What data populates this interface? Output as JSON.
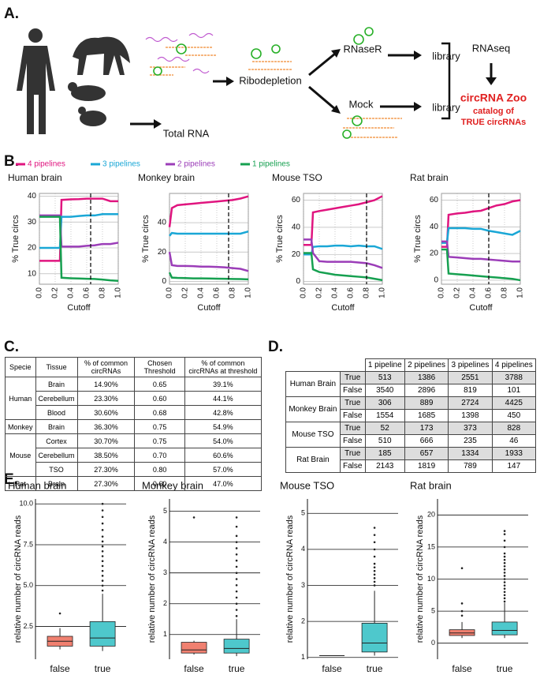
{
  "panel_labels": [
    "A.",
    "B.",
    "C.",
    "D.",
    "E."
  ],
  "panel_a": {
    "total_rna": "Total RNA",
    "ribodepletion": "Ribodepletion",
    "rnaser": "RNaseR",
    "mock": "Mock",
    "library_1": "library",
    "library_2": "library",
    "rnaseq": "RNAseq",
    "zoo_title": "circRNA Zoo",
    "zoo_sub_1": "catalog of",
    "zoo_sub_2": "TRUE circRNAs"
  },
  "chart_data": [
    {
      "type": "line",
      "title": "Human brain",
      "x_label": "Cutoff",
      "y_label": "% True circs",
      "x": [
        0,
        0.1,
        0.2,
        0.26,
        0.28,
        0.4,
        0.5,
        0.6,
        0.7,
        0.8,
        0.9,
        1.0
      ],
      "xlim": [
        0,
        1
      ],
      "xticks": [
        {
          "value": 0,
          "label": "0.0"
        },
        0.2,
        0.4,
        0.6,
        0.8,
        {
          "value": 1,
          "label": "1.0"
        }
      ],
      "ylim": [
        6,
        41
      ],
      "yticks": [
        10,
        20,
        30,
        40
      ],
      "threshold": 0.65,
      "grid": true,
      "series": [
        {
          "name": "4 pipelines",
          "color": "#e0157f",
          "values": [
            15,
            15,
            15,
            15,
            38.5,
            38.7,
            38.8,
            39,
            39,
            39,
            38,
            38
          ]
        },
        {
          "name": "3 pipelines",
          "color": "#1aa7d6",
          "values": [
            20,
            20,
            20,
            20,
            32,
            32,
            32.3,
            32.5,
            32.5,
            33,
            33,
            33
          ]
        },
        {
          "name": "2 pipelines",
          "color": "#9b3db8",
          "values": [
            32.5,
            32.5,
            32.5,
            32.5,
            20.5,
            20.5,
            20.5,
            20.8,
            21,
            21.5,
            21.5,
            22
          ]
        },
        {
          "name": "1 pipelines",
          "color": "#16a050",
          "values": [
            32,
            32,
            32,
            32,
            8.5,
            8.3,
            8.2,
            8.1,
            8,
            7.8,
            7.5,
            7.3
          ]
        }
      ]
    },
    {
      "type": "line",
      "title": "Monkey brain",
      "x_label": "Cutoff",
      "y_label": "% True circs",
      "x": [
        0,
        0.03,
        0.1,
        0.2,
        0.3,
        0.4,
        0.5,
        0.6,
        0.7,
        0.8,
        0.9,
        1.0
      ],
      "xlim": [
        0,
        1
      ],
      "xticks": [
        {
          "value": 0,
          "label": "0.0"
        },
        0.2,
        0.4,
        0.6,
        0.8,
        {
          "value": 1,
          "label": "1.0"
        }
      ],
      "ylim": [
        -2,
        60
      ],
      "yticks": [
        0,
        20,
        40
      ],
      "threshold": 0.75,
      "grid": true,
      "series": [
        {
          "color": "#e0157f",
          "values": [
            37,
            50,
            52,
            52.5,
            53,
            53.5,
            54,
            54.5,
            55,
            55.5,
            56.5,
            58
          ]
        },
        {
          "color": "#1aa7d6",
          "values": [
            31,
            33,
            32.5,
            32.5,
            32.5,
            32.5,
            32.5,
            32.5,
            32.5,
            32.5,
            32.5,
            34
          ]
        },
        {
          "color": "#9b3db8",
          "values": [
            20,
            11,
            10.5,
            10.5,
            10.3,
            10,
            10,
            9.8,
            9.5,
            9,
            8.5,
            7
          ]
        },
        {
          "color": "#16a050",
          "values": [
            6,
            2.5,
            2.3,
            2.2,
            2,
            2,
            1.9,
            1.8,
            1.7,
            1.6,
            1.5,
            1.3
          ]
        }
      ]
    },
    {
      "type": "line",
      "title": "Mouse TSO",
      "x_label": "Cutoff",
      "y_label": "% True circs",
      "x": [
        0,
        0.1,
        0.12,
        0.2,
        0.3,
        0.4,
        0.5,
        0.6,
        0.7,
        0.8,
        0.9,
        1.0
      ],
      "xlim": [
        0,
        1
      ],
      "xticks": [
        {
          "value": 0,
          "label": "0.0"
        },
        0.2,
        0.4,
        0.6,
        0.8,
        {
          "value": 1,
          "label": "1.0"
        }
      ],
      "ylim": [
        -2,
        65
      ],
      "yticks": [
        0,
        20,
        40,
        60
      ],
      "threshold": 0.8,
      "grid": true,
      "series": [
        {
          "color": "#e0157f",
          "values": [
            27,
            27,
            51,
            52,
            53,
            54,
            55,
            56,
            57,
            58.5,
            60,
            63
          ]
        },
        {
          "color": "#1aa7d6",
          "values": [
            20,
            20,
            25.5,
            26,
            26,
            26.5,
            26.5,
            26,
            26.5,
            26,
            26,
            24
          ]
        },
        {
          "color": "#9b3db8",
          "values": [
            31,
            31,
            21,
            15,
            14.5,
            14.5,
            14.5,
            14.5,
            14,
            13.5,
            12,
            10
          ]
        },
        {
          "color": "#16a050",
          "values": [
            21,
            21,
            9,
            7,
            6,
            5,
            4.5,
            4,
            3.5,
            3,
            2,
            1
          ]
        }
      ]
    },
    {
      "type": "line",
      "title": "Rat brain",
      "x_label": "Cutoff",
      "y_label": "% True circs",
      "x": [
        0,
        0.07,
        0.09,
        0.2,
        0.3,
        0.4,
        0.5,
        0.6,
        0.7,
        0.8,
        0.9,
        1.0
      ],
      "xlim": [
        0,
        1
      ],
      "xticks": [
        {
          "value": 0,
          "label": "0.0"
        },
        0.2,
        0.4,
        0.6,
        0.8,
        {
          "value": 1,
          "label": "1.0"
        }
      ],
      "ylim": [
        -3,
        65
      ],
      "yticks": [
        0,
        20,
        40,
        60
      ],
      "threshold": 0.6,
      "grid": true,
      "series": [
        {
          "color": "#e0157f",
          "values": [
            25,
            25,
            49,
            50,
            50.5,
            51.5,
            52,
            54,
            56,
            57,
            59,
            60
          ]
        },
        {
          "color": "#1aa7d6",
          "values": [
            28,
            28,
            39,
            39,
            39,
            38.5,
            38.5,
            37,
            36,
            35,
            34,
            37
          ]
        },
        {
          "color": "#9b3db8",
          "values": [
            29,
            29,
            17.5,
            17,
            16.5,
            16,
            16,
            15.5,
            15,
            14.5,
            14,
            14
          ]
        },
        {
          "color": "#16a050",
          "values": [
            23,
            23,
            5,
            4.5,
            4,
            3.5,
            3,
            2.5,
            2,
            1.5,
            1,
            0
          ]
        }
      ]
    },
    {
      "type": "box",
      "title": "Human brain",
      "y_label": "relative number of circRNA reads",
      "categories": [
        "false",
        "true"
      ],
      "colors": [
        "#f08070",
        "#4ec8cc"
      ],
      "ylim": [
        0.5,
        10.3
      ],
      "yticks": [
        2.5,
        {
          "value": 5,
          "label": "5.0"
        },
        7.5,
        {
          "value": 10,
          "label": "10.0"
        }
      ],
      "boxes": [
        {
          "whislo": 1.1,
          "q1": 1.3,
          "med": 1.6,
          "q3": 1.9,
          "whishi": 2.4,
          "outliers": [
            3.3
          ]
        },
        {
          "whislo": 1.0,
          "q1": 1.3,
          "med": 1.8,
          "q3": 2.8,
          "whishi": 4.5,
          "outliers": [
            4.7,
            5.0,
            5.3,
            5.6,
            5.9,
            6.2,
            6.5,
            6.8,
            7.1,
            7.4,
            7.7,
            8.0,
            8.4,
            8.8,
            9.2,
            9.6,
            10.0
          ]
        }
      ]
    },
    {
      "type": "box",
      "title": "Monkey brain",
      "y_label": "relative number of circRNA reads",
      "categories": [
        "false",
        "true"
      ],
      "colors": [
        "#f08070",
        "#4ec8cc"
      ],
      "ylim": [
        0.2,
        5.4
      ],
      "yticks": [
        1,
        2,
        3,
        4,
        5
      ],
      "boxes": [
        {
          "whislo": 0.35,
          "q1": 0.4,
          "med": 0.5,
          "q3": 0.75,
          "whishi": 0.8,
          "outliers": [
            4.8
          ]
        },
        {
          "whislo": 0.3,
          "q1": 0.4,
          "med": 0.55,
          "q3": 0.85,
          "whishi": 1.5,
          "outliers": [
            1.6,
            1.8,
            2.0,
            2.2,
            2.4,
            2.6,
            2.8,
            3.0,
            3.2,
            3.4,
            3.6,
            3.8,
            4.0,
            4.2,
            4.5,
            4.8
          ]
        }
      ]
    },
    {
      "type": "box",
      "title": "Mouse TSO",
      "y_label": "relative number of circRNA reads",
      "categories": [
        "false",
        "true"
      ],
      "colors": [
        "#f08070",
        "#4ec8cc"
      ],
      "ylim": [
        0.95,
        5.4
      ],
      "yticks": [
        1,
        2,
        3,
        4,
        5
      ],
      "boxes": [
        {
          "whislo": 1.05,
          "q1": 1.05,
          "med": 1.05,
          "q3": 1.05,
          "whishi": 1.05,
          "outliers": []
        },
        {
          "whislo": 1.05,
          "q1": 1.15,
          "med": 1.4,
          "q3": 1.95,
          "whishi": 2.85,
          "outliers": [
            3.0,
            3.1,
            3.2,
            3.3,
            3.4,
            3.5,
            3.6,
            3.8,
            4.0,
            4.2,
            4.4,
            4.6
          ]
        }
      ]
    },
    {
      "type": "box",
      "title": "Rat brain",
      "y_label": "relative number of circRNA reads",
      "categories": [
        "false",
        "true"
      ],
      "colors": [
        "#f08070",
        "#4ec8cc"
      ],
      "ylim": [
        -2.5,
        22.5
      ],
      "yticks": [
        0,
        5,
        10,
        15,
        20
      ],
      "boxes": [
        {
          "whislo": 0.8,
          "q1": 1.2,
          "med": 1.6,
          "q3": 2.1,
          "whishi": 3.3,
          "outliers": [
            4.3,
            5.0,
            6.2,
            11.7
          ]
        },
        {
          "whislo": 0.8,
          "q1": 1.3,
          "med": 2.0,
          "q3": 3.3,
          "whishi": 6.3,
          "outliers": [
            6.5,
            7,
            7.5,
            8,
            8.5,
            9,
            9.5,
            10,
            10.5,
            11,
            11.5,
            12,
            12.5,
            13,
            13.5,
            14,
            15,
            16,
            17,
            17.5
          ]
        }
      ]
    }
  ],
  "table_c": {
    "headers": [
      "Specie",
      "Tissue",
      "% of common circRNAs",
      "Chosen Threshold",
      "% of common circRNAs at threshold"
    ],
    "groups": [
      {
        "specie": "Human",
        "rows": [
          [
            "Brain",
            "14.90%",
            "0.65",
            "39.1%"
          ],
          [
            "Cerebellum",
            "23.30%",
            "0.60",
            "44.1%"
          ],
          [
            "Blood",
            "30.60%",
            "0.68",
            "42.8%"
          ]
        ]
      },
      {
        "specie": "Monkey",
        "rows": [
          [
            "Brain",
            "36.30%",
            "0.75",
            "54.9%"
          ]
        ]
      },
      {
        "specie": "Mouse",
        "rows": [
          [
            "Cortex",
            "30.70%",
            "0.75",
            "54.0%"
          ],
          [
            "Cerebellum",
            "38.50%",
            "0.70",
            "60.6%"
          ],
          [
            "TSO",
            "27.30%",
            "0.80",
            "57.0%"
          ]
        ]
      },
      {
        "specie": "Rat",
        "rows": [
          [
            "Brain",
            "27.30%",
            "0.60",
            "47.0%"
          ]
        ]
      }
    ]
  },
  "table_d": {
    "headers": [
      "1 pipeline",
      "2 pipelines",
      "3 pipelines",
      "4 pipelines"
    ],
    "groups": [
      {
        "name": "Human Brain",
        "rows": [
          {
            "label": "True",
            "values": [
              513,
              1386,
              2551,
              3788
            ]
          },
          {
            "label": "False",
            "values": [
              3540,
              2896,
              819,
              101
            ]
          }
        ]
      },
      {
        "name": "Monkey Brain",
        "rows": [
          {
            "label": "True",
            "values": [
              306,
              889,
              2724,
              4425
            ]
          },
          {
            "label": "False",
            "values": [
              1554,
              1685,
              1398,
              450
            ]
          }
        ]
      },
      {
        "name": "Mouse TSO",
        "rows": [
          {
            "label": "True",
            "values": [
              52,
              173,
              373,
              828
            ]
          },
          {
            "label": "False",
            "values": [
              510,
              666,
              235,
              46
            ]
          }
        ]
      },
      {
        "name": "Rat Brain",
        "rows": [
          {
            "label": "True",
            "values": [
              185,
              657,
              1334,
              1933
            ]
          },
          {
            "label": "False",
            "values": [
              2143,
              1819,
              789,
              147
            ]
          }
        ]
      }
    ]
  }
}
